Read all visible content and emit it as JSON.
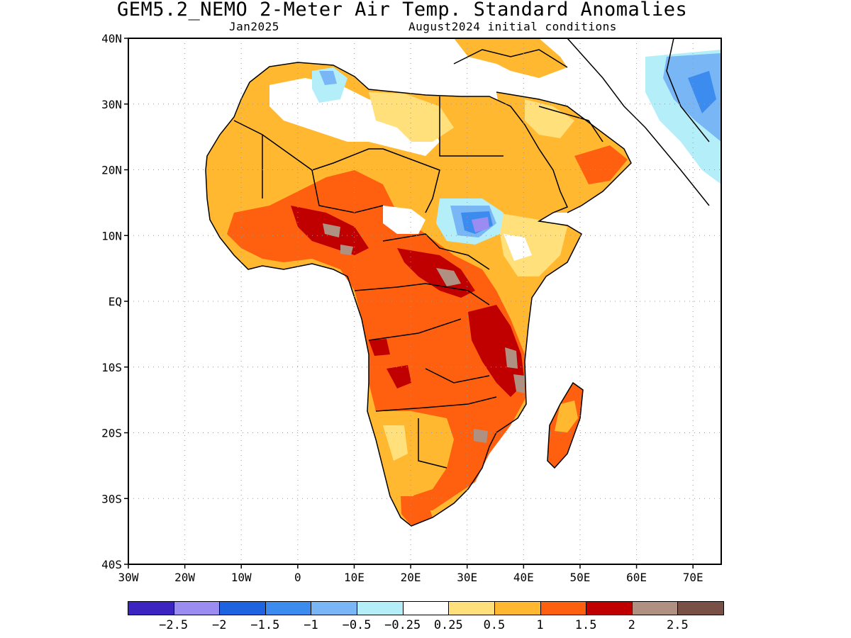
{
  "header": {
    "title": "GEM5.2_NEMO 2-Meter Air Temp. Standard Anomalies",
    "month": "Jan2025",
    "init": "August2024 initial conditions"
  },
  "axes": {
    "lat_labels": [
      "40N",
      "30N",
      "20N",
      "10N",
      "EQ",
      "10S",
      "20S",
      "30S",
      "40S"
    ],
    "lat_values": [
      40,
      30,
      20,
      10,
      0,
      -10,
      -20,
      -30,
      -40
    ],
    "lon_labels": [
      "30W",
      "20W",
      "10W",
      "0",
      "10E",
      "20E",
      "30E",
      "40E",
      "50E",
      "60E",
      "70E"
    ],
    "lon_values": [
      -30,
      -20,
      -10,
      0,
      10,
      20,
      30,
      40,
      50,
      60,
      70
    ],
    "lon_range": [
      -30,
      75
    ],
    "lat_range": [
      -40,
      40
    ],
    "grid": true
  },
  "colorbar": {
    "colors": [
      "#3b24c0",
      "#9b8cf2",
      "#1e64e0",
      "#3c8cf0",
      "#78b6f5",
      "#b4eef8",
      "#ffffff",
      "#ffe07a",
      "#ffb830",
      "#ff6010",
      "#c00000",
      "#b09080",
      "#785046"
    ],
    "labels": [
      "−2.5",
      "−2",
      "−1.5",
      "−1",
      "−0.5",
      "−0.25",
      "0.25",
      "0.5",
      "1",
      "1.5",
      "2",
      "2.5"
    ]
  }
}
